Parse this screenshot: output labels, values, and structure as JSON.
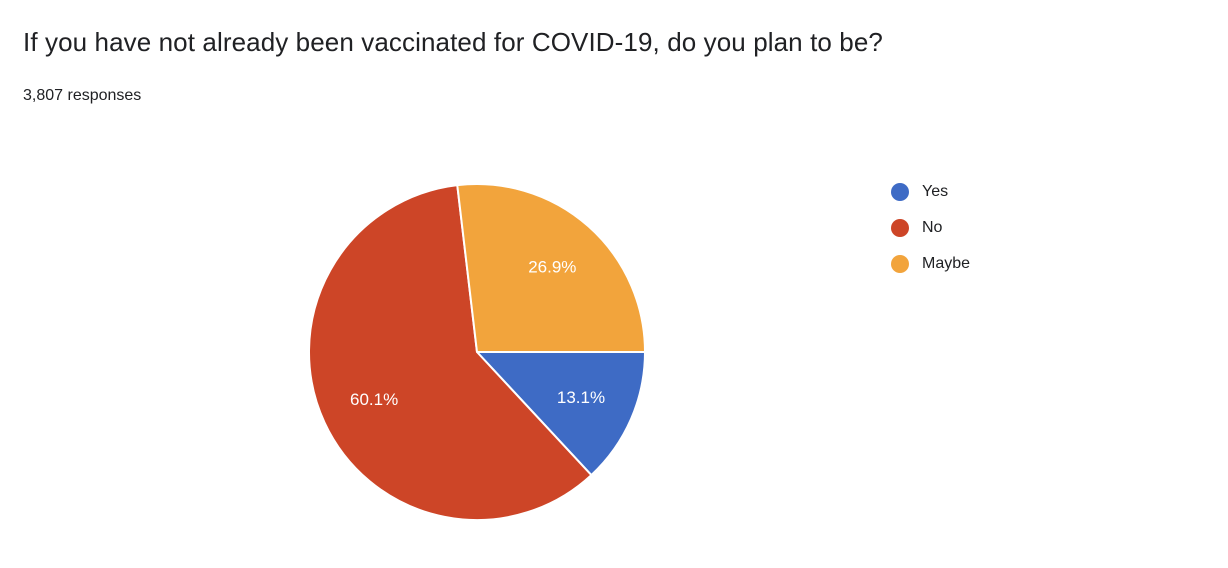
{
  "chart_data": {
    "type": "pie",
    "title": "If you have not already been vaccinated for COVID-19, do you plan to be?",
    "subtitle": "3,807 responses",
    "slices": [
      {
        "label": "Yes",
        "value": 13.1,
        "pct_label": "13.1%",
        "color": "#3E6BC5"
      },
      {
        "label": "No",
        "value": 60.1,
        "pct_label": "60.1%",
        "color": "#CD4527"
      },
      {
        "label": "Maybe",
        "value": 26.9,
        "pct_label": "26.9%",
        "color": "#F2A43C"
      }
    ],
    "start_angle_deg": 90,
    "direction": "clockwise",
    "legend_position": "right",
    "slice_label_color": "#FFFFFF",
    "slice_border_color": "#FFFFFF",
    "background_color": "#FFFFFF",
    "text_color": "#202124"
  }
}
